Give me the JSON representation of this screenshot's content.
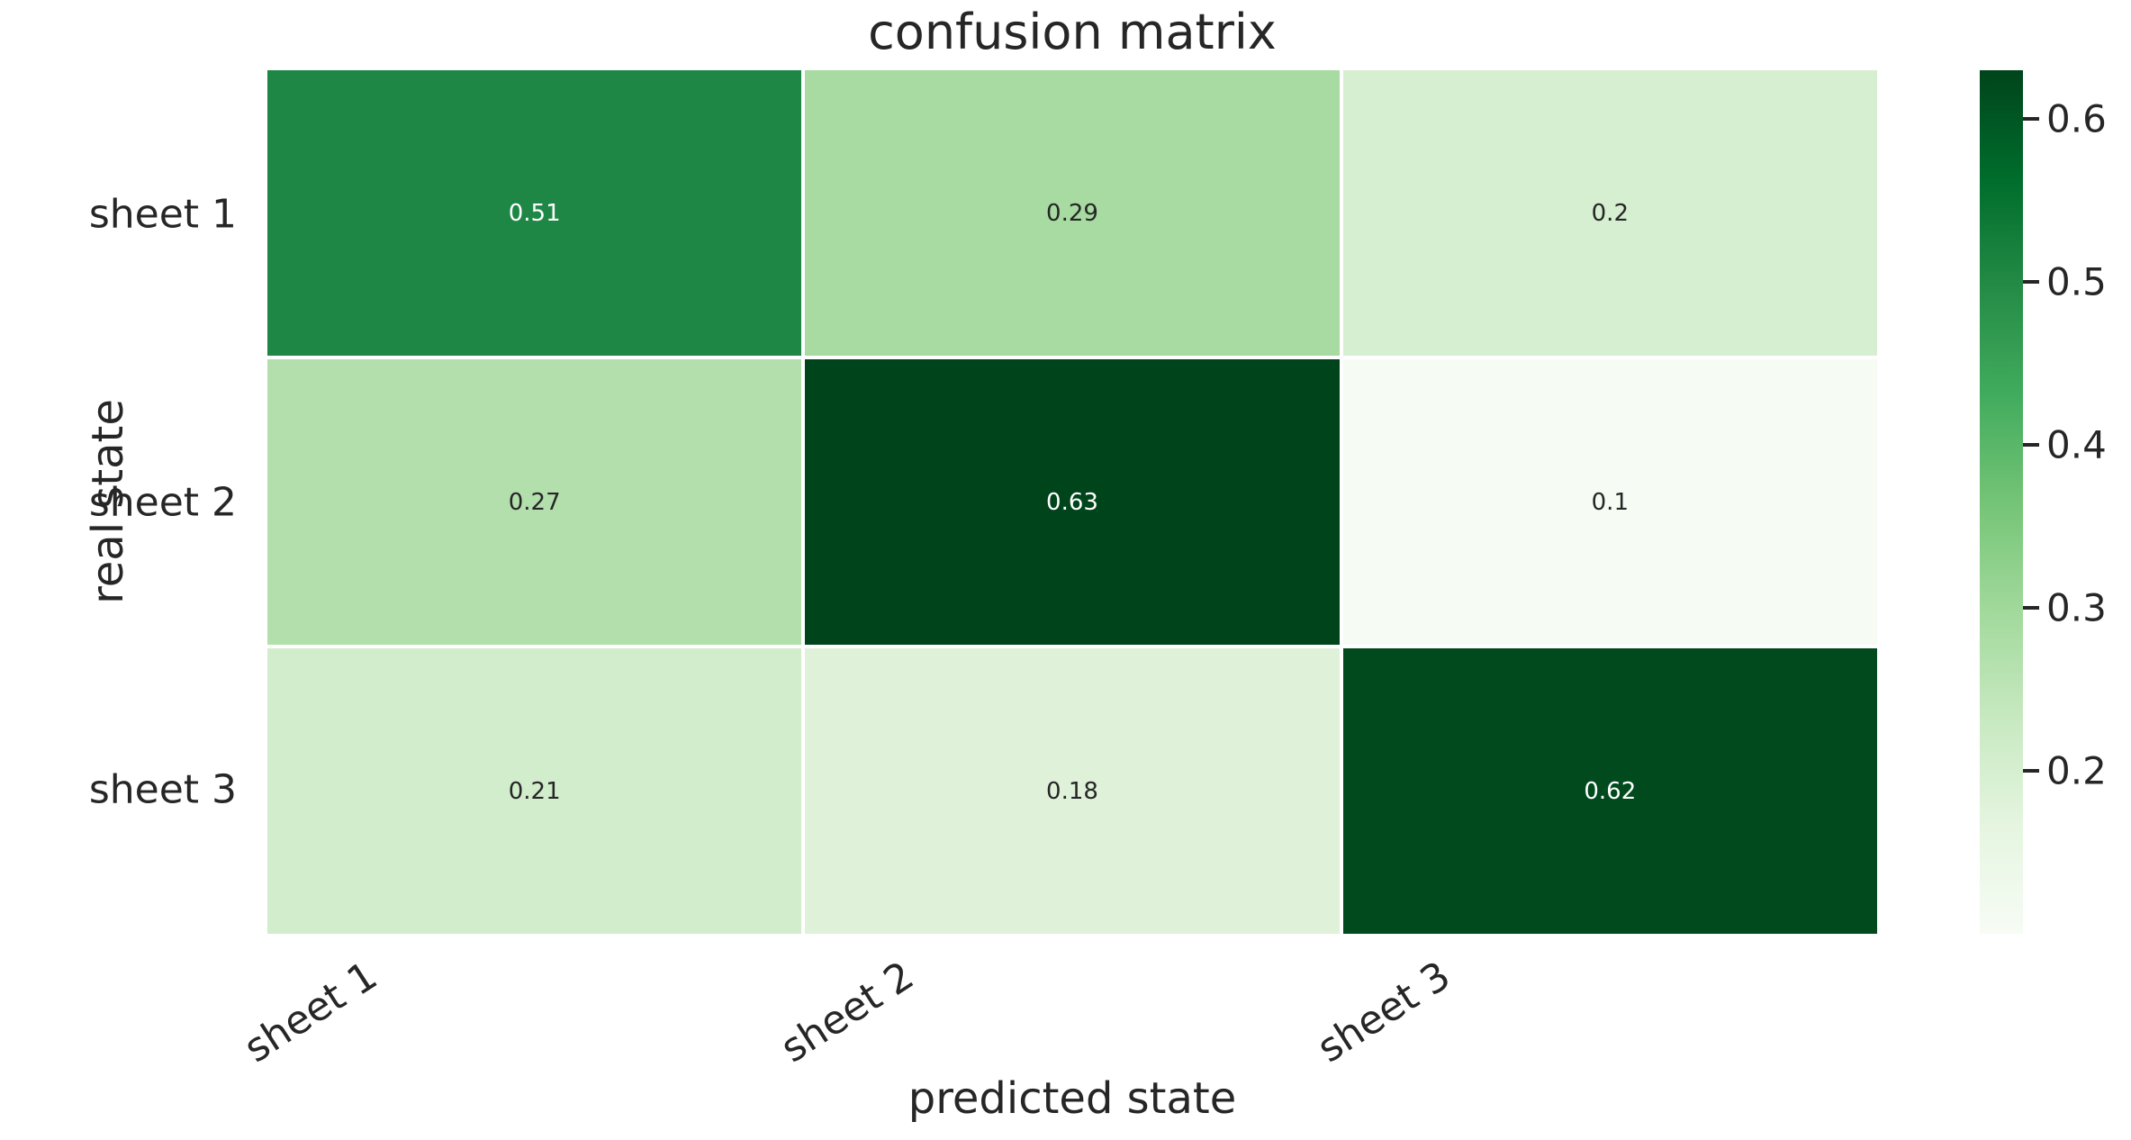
{
  "chart_data": {
    "type": "heatmap",
    "title": "confusion matrix",
    "xlabel": "predicted state",
    "ylabel": "real state",
    "x_categories": [
      "sheet 1",
      "sheet 2",
      "sheet 3"
    ],
    "y_categories": [
      "sheet 1",
      "sheet 2",
      "sheet 3"
    ],
    "values": [
      [
        0.51,
        0.29,
        0.2
      ],
      [
        0.27,
        0.63,
        0.1
      ],
      [
        0.21,
        0.18,
        0.62
      ]
    ],
    "value_labels": [
      [
        "0.51",
        "0.29",
        "0.2"
      ],
      [
        "0.27",
        "0.63",
        "0.1"
      ],
      [
        "0.21",
        "0.18",
        "0.62"
      ]
    ],
    "cell_colors": [
      [
        "#1e8745",
        "#a7dba1",
        "#d6efd0"
      ],
      [
        "#b3dfad",
        "#00441b",
        "#f6fbf4"
      ],
      [
        "#d2edcc",
        "#dff2d9",
        "#014a1e"
      ]
    ],
    "cell_text_colors": [
      [
        "#ffffff",
        "#262626",
        "#262626"
      ],
      [
        "#262626",
        "#ffffff",
        "#262626"
      ],
      [
        "#262626",
        "#262626",
        "#ffffff"
      ]
    ],
    "colormap": "Greens",
    "vmin": 0.1,
    "vmax": 0.63,
    "colorbar_ticks": [
      "0.6",
      "0.5",
      "0.4",
      "0.3",
      "0.2"
    ],
    "colorbar_tick_values": [
      0.6,
      0.5,
      0.4,
      0.3,
      0.2
    ],
    "colorbar_gradient_top_to_bottom": [
      "#00441b",
      "#006d2c",
      "#238b45",
      "#41ab5d",
      "#74c476",
      "#a1d99b",
      "#c7e9c0",
      "#e5f5e0",
      "#f7fcf5"
    ],
    "grid_line_color": "#ffffff",
    "text_color": "#262626",
    "background_color": "#ffffff",
    "legend_position": "right-colorbar",
    "grid": false
  }
}
